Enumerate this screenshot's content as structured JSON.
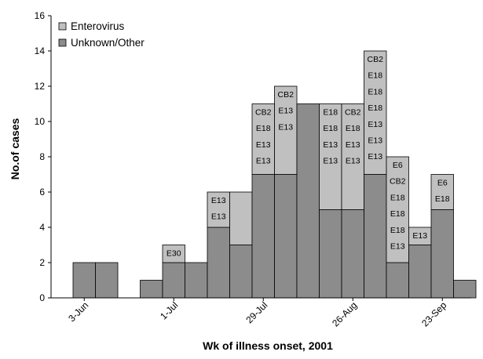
{
  "chart_data": {
    "type": "bar",
    "stacked": true,
    "xlabel": "Wk of illness onset, 2001",
    "ylabel": "No.of cases",
    "ylim": [
      0,
      16
    ],
    "yticks": [
      0,
      2,
      4,
      6,
      8,
      10,
      12,
      14,
      16
    ],
    "xtick_labels": [
      {
        "week_index": 1,
        "label": "3-Jun"
      },
      {
        "week_index": 5,
        "label": "1-Jul"
      },
      {
        "week_index": 9,
        "label": "29-Jul"
      },
      {
        "week_index": 13,
        "label": "26-Aug"
      },
      {
        "week_index": 17,
        "label": "23-Sep"
      }
    ],
    "legend_position": "top-left",
    "series": [
      {
        "name": "Enterovirus",
        "color": "#c0c0c0"
      },
      {
        "name": "Unknown/Other",
        "color": "#8c8c8c"
      }
    ],
    "weeks": [
      {
        "index": 1,
        "unknown": 2,
        "enterovirus": 0,
        "labels": []
      },
      {
        "index": 2,
        "unknown": 2,
        "enterovirus": 0,
        "labels": []
      },
      {
        "index": 4,
        "unknown": 1,
        "enterovirus": 0,
        "labels": []
      },
      {
        "index": 5,
        "unknown": 2,
        "enterovirus": 1,
        "labels": [
          "E30"
        ]
      },
      {
        "index": 6,
        "unknown": 2,
        "enterovirus": 0,
        "labels": []
      },
      {
        "index": 7,
        "unknown": 4,
        "enterovirus": 2,
        "labels": [
          "E13",
          "E13"
        ]
      },
      {
        "index": 8,
        "unknown": 3,
        "enterovirus": 3,
        "labels": []
      },
      {
        "index": 9,
        "unknown": 7,
        "enterovirus": 4,
        "labels": [
          "CB2",
          "E18",
          "E13",
          "E13"
        ]
      },
      {
        "index": 10,
        "unknown": 7,
        "enterovirus": 5,
        "labels": [
          "CB2",
          "E13",
          "E13"
        ]
      },
      {
        "index": 11,
        "unknown": 11,
        "enterovirus": 0,
        "labels": []
      },
      {
        "index": 12,
        "unknown": 5,
        "enterovirus": 6,
        "labels": [
          "E18",
          "E18",
          "E13",
          "E13"
        ]
      },
      {
        "index": 13,
        "unknown": 5,
        "enterovirus": 6,
        "labels": [
          "CB2",
          "E18",
          "E13",
          "E13"
        ]
      },
      {
        "index": 14,
        "unknown": 7,
        "enterovirus": 7,
        "labels": [
          "CB2",
          "E18",
          "E18",
          "E18",
          "E13",
          "E13",
          "E13"
        ]
      },
      {
        "index": 15,
        "unknown": 2,
        "enterovirus": 6,
        "labels": [
          "E6",
          "CB2",
          "E18",
          "E18",
          "E18",
          "E13"
        ]
      },
      {
        "index": 16,
        "unknown": 3,
        "enterovirus": 1,
        "labels": [
          "E13"
        ]
      },
      {
        "index": 17,
        "unknown": 5,
        "enterovirus": 2,
        "labels": [
          "E6",
          "E18"
        ]
      },
      {
        "index": 18,
        "unknown": 1,
        "enterovirus": 0,
        "labels": []
      }
    ]
  }
}
